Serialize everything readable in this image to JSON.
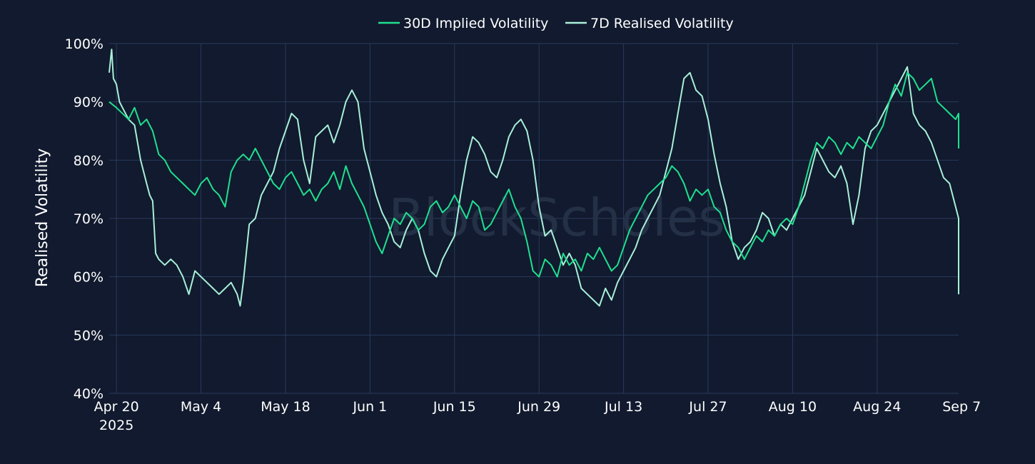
{
  "colors": {
    "background": "#111a2e",
    "grid": "#2a3a5c",
    "text": "#ffffff",
    "watermark": "#2a3446",
    "implied": "#1fe08f",
    "realised": "#a8f0d8"
  },
  "watermark": "BlockScholes",
  "chart_data": {
    "type": "line",
    "title": "",
    "xlabel": "",
    "ylabel": "Realised Volatility",
    "ylim": [
      0.4,
      1.0
    ],
    "yticks": [
      0.4,
      0.5,
      0.6,
      0.7,
      0.8,
      0.9,
      1.0
    ],
    "ytick_labels": [
      "40%",
      "50%",
      "60%",
      "70%",
      "80%",
      "90%",
      "100%"
    ],
    "x_range_days": [
      -1.2,
      139.5
    ],
    "x_start_date": "2025-04-20",
    "xticks": [
      0,
      14,
      28,
      42,
      56,
      70,
      84,
      98,
      112,
      126,
      140
    ],
    "xtick_labels": [
      "Apr 20",
      "May 4",
      "May 18",
      "Jun 1",
      "Jun 15",
      "Jun 29",
      "Jul 13",
      "Jul 27",
      "Aug 10",
      "Aug 24",
      "Sep 7"
    ],
    "xtick_year": "2025",
    "grid": true,
    "legend_position": "top-center",
    "series": [
      {
        "name": "30D Implied Volatility",
        "color_key": "implied",
        "points": [
          [
            -1.2,
            0.9
          ],
          [
            0,
            0.89
          ],
          [
            2,
            0.87
          ],
          [
            3,
            0.89
          ],
          [
            4,
            0.86
          ],
          [
            5,
            0.87
          ],
          [
            6,
            0.85
          ],
          [
            7,
            0.81
          ],
          [
            8,
            0.8
          ],
          [
            9,
            0.78
          ],
          [
            10,
            0.77
          ],
          [
            11,
            0.76
          ],
          [
            12,
            0.75
          ],
          [
            13,
            0.74
          ],
          [
            14,
            0.76
          ],
          [
            15,
            0.77
          ],
          [
            16,
            0.75
          ],
          [
            17,
            0.74
          ],
          [
            18,
            0.72
          ],
          [
            19,
            0.78
          ],
          [
            20,
            0.8
          ],
          [
            21,
            0.81
          ],
          [
            22,
            0.8
          ],
          [
            23,
            0.82
          ],
          [
            24,
            0.8
          ],
          [
            25,
            0.78
          ],
          [
            26,
            0.76
          ],
          [
            27,
            0.75
          ],
          [
            28,
            0.77
          ],
          [
            29,
            0.78
          ],
          [
            30,
            0.76
          ],
          [
            31,
            0.74
          ],
          [
            32,
            0.75
          ],
          [
            33,
            0.73
          ],
          [
            34,
            0.75
          ],
          [
            35,
            0.76
          ],
          [
            36,
            0.78
          ],
          [
            37,
            0.75
          ],
          [
            38,
            0.79
          ],
          [
            39,
            0.76
          ],
          [
            40,
            0.74
          ],
          [
            41,
            0.72
          ],
          [
            42,
            0.69
          ],
          [
            43,
            0.66
          ],
          [
            44,
            0.64
          ],
          [
            45,
            0.67
          ],
          [
            46,
            0.7
          ],
          [
            47,
            0.69
          ],
          [
            48,
            0.71
          ],
          [
            49,
            0.7
          ],
          [
            50,
            0.68
          ],
          [
            51,
            0.69
          ],
          [
            52,
            0.72
          ],
          [
            53,
            0.73
          ],
          [
            54,
            0.71
          ],
          [
            55,
            0.72
          ],
          [
            56,
            0.74
          ],
          [
            57,
            0.72
          ],
          [
            58,
            0.7
          ],
          [
            59,
            0.73
          ],
          [
            60,
            0.72
          ],
          [
            61,
            0.68
          ],
          [
            62,
            0.69
          ],
          [
            63,
            0.71
          ],
          [
            64,
            0.73
          ],
          [
            65,
            0.75
          ],
          [
            66,
            0.72
          ],
          [
            67,
            0.7
          ],
          [
            68,
            0.66
          ],
          [
            69,
            0.61
          ],
          [
            70,
            0.6
          ],
          [
            71,
            0.63
          ],
          [
            72,
            0.62
          ],
          [
            73,
            0.6
          ],
          [
            74,
            0.64
          ],
          [
            75,
            0.62
          ],
          [
            76,
            0.63
          ],
          [
            77,
            0.61
          ],
          [
            78,
            0.64
          ],
          [
            79,
            0.63
          ],
          [
            80,
            0.65
          ],
          [
            81,
            0.63
          ],
          [
            82,
            0.61
          ],
          [
            83,
            0.62
          ],
          [
            84,
            0.65
          ],
          [
            85,
            0.68
          ],
          [
            86,
            0.7
          ],
          [
            87,
            0.72
          ],
          [
            88,
            0.74
          ],
          [
            89,
            0.75
          ],
          [
            90,
            0.76
          ],
          [
            91,
            0.77
          ],
          [
            92,
            0.79
          ],
          [
            93,
            0.78
          ],
          [
            94,
            0.76
          ],
          [
            95,
            0.73
          ],
          [
            96,
            0.75
          ],
          [
            97,
            0.74
          ],
          [
            98,
            0.75
          ],
          [
            99,
            0.72
          ],
          [
            100,
            0.71
          ],
          [
            101,
            0.68
          ],
          [
            102,
            0.66
          ],
          [
            103,
            0.65
          ],
          [
            104,
            0.63
          ],
          [
            105,
            0.65
          ],
          [
            106,
            0.67
          ],
          [
            107,
            0.66
          ],
          [
            108,
            0.68
          ],
          [
            109,
            0.67
          ],
          [
            110,
            0.69
          ],
          [
            111,
            0.7
          ],
          [
            112,
            0.69
          ],
          [
            113,
            0.72
          ],
          [
            114,
            0.76
          ],
          [
            115,
            0.8
          ],
          [
            116,
            0.83
          ],
          [
            117,
            0.82
          ],
          [
            118,
            0.84
          ],
          [
            119,
            0.83
          ],
          [
            120,
            0.81
          ],
          [
            121,
            0.83
          ],
          [
            122,
            0.82
          ],
          [
            123,
            0.84
          ],
          [
            124,
            0.83
          ],
          [
            125,
            0.82
          ],
          [
            126,
            0.84
          ],
          [
            127,
            0.86
          ],
          [
            128,
            0.9
          ],
          [
            129,
            0.93
          ],
          [
            130,
            0.91
          ],
          [
            131,
            0.95
          ],
          [
            132,
            0.94
          ],
          [
            133,
            0.92
          ],
          [
            134,
            0.93
          ],
          [
            135,
            0.94
          ],
          [
            136,
            0.9
          ],
          [
            137,
            0.89
          ],
          [
            138,
            0.88
          ],
          [
            139,
            0.87
          ],
          [
            140,
            0.88
          ],
          [
            141,
            0.86
          ],
          [
            142,
            0.87
          ],
          [
            143,
            0.85
          ],
          [
            144,
            0.86
          ],
          [
            145,
            0.82
          ]
        ]
      },
      {
        "name": "7D Realised Volatility",
        "color_key": "realised",
        "points": [
          [
            -1.2,
            0.95
          ],
          [
            -0.8,
            0.99
          ],
          [
            -0.5,
            0.94
          ],
          [
            0,
            0.93
          ],
          [
            0.5,
            0.9
          ],
          [
            1,
            0.89
          ],
          [
            2,
            0.87
          ],
          [
            3,
            0.86
          ],
          [
            4,
            0.8
          ],
          [
            5,
            0.76
          ],
          [
            5.5,
            0.74
          ],
          [
            6,
            0.73
          ],
          [
            6.5,
            0.64
          ],
          [
            7,
            0.63
          ],
          [
            8,
            0.62
          ],
          [
            9,
            0.63
          ],
          [
            10,
            0.62
          ],
          [
            11,
            0.6
          ],
          [
            12,
            0.57
          ],
          [
            13,
            0.61
          ],
          [
            14,
            0.6
          ],
          [
            15,
            0.59
          ],
          [
            16,
            0.58
          ],
          [
            17,
            0.57
          ],
          [
            18,
            0.58
          ],
          [
            19,
            0.59
          ],
          [
            20,
            0.57
          ],
          [
            20.5,
            0.55
          ],
          [
            21,
            0.59
          ],
          [
            22,
            0.69
          ],
          [
            23,
            0.7
          ],
          [
            24,
            0.74
          ],
          [
            25,
            0.76
          ],
          [
            26,
            0.78
          ],
          [
            27,
            0.82
          ],
          [
            28,
            0.85
          ],
          [
            29,
            0.88
          ],
          [
            30,
            0.87
          ],
          [
            31,
            0.8
          ],
          [
            32,
            0.76
          ],
          [
            33,
            0.84
          ],
          [
            34,
            0.85
          ],
          [
            35,
            0.86
          ],
          [
            36,
            0.83
          ],
          [
            37,
            0.86
          ],
          [
            38,
            0.9
          ],
          [
            39,
            0.92
          ],
          [
            40,
            0.9
          ],
          [
            41,
            0.82
          ],
          [
            42,
            0.78
          ],
          [
            43,
            0.74
          ],
          [
            44,
            0.71
          ],
          [
            45,
            0.69
          ],
          [
            46,
            0.66
          ],
          [
            47,
            0.65
          ],
          [
            48,
            0.68
          ],
          [
            49,
            0.7
          ],
          [
            50,
            0.68
          ],
          [
            51,
            0.64
          ],
          [
            52,
            0.61
          ],
          [
            53,
            0.6
          ],
          [
            54,
            0.63
          ],
          [
            55,
            0.65
          ],
          [
            56,
            0.67
          ],
          [
            57,
            0.74
          ],
          [
            58,
            0.8
          ],
          [
            59,
            0.84
          ],
          [
            60,
            0.83
          ],
          [
            61,
            0.81
          ],
          [
            62,
            0.78
          ],
          [
            63,
            0.77
          ],
          [
            64,
            0.8
          ],
          [
            65,
            0.84
          ],
          [
            66,
            0.86
          ],
          [
            67,
            0.87
          ],
          [
            68,
            0.85
          ],
          [
            69,
            0.8
          ],
          [
            70,
            0.72
          ],
          [
            71,
            0.67
          ],
          [
            72,
            0.68
          ],
          [
            73,
            0.65
          ],
          [
            74,
            0.62
          ],
          [
            75,
            0.64
          ],
          [
            76,
            0.62
          ],
          [
            77,
            0.58
          ],
          [
            78,
            0.57
          ],
          [
            79,
            0.56
          ],
          [
            80,
            0.55
          ],
          [
            81,
            0.58
          ],
          [
            82,
            0.56
          ],
          [
            83,
            0.59
          ],
          [
            84,
            0.61
          ],
          [
            85,
            0.63
          ],
          [
            86,
            0.65
          ],
          [
            87,
            0.68
          ],
          [
            88,
            0.7
          ],
          [
            89,
            0.72
          ],
          [
            90,
            0.74
          ],
          [
            91,
            0.78
          ],
          [
            92,
            0.82
          ],
          [
            93,
            0.88
          ],
          [
            94,
            0.94
          ],
          [
            95,
            0.95
          ],
          [
            96,
            0.92
          ],
          [
            97,
            0.91
          ],
          [
            98,
            0.87
          ],
          [
            99,
            0.81
          ],
          [
            100,
            0.76
          ],
          [
            101,
            0.72
          ],
          [
            102,
            0.66
          ],
          [
            103,
            0.63
          ],
          [
            104,
            0.65
          ],
          [
            105,
            0.66
          ],
          [
            106,
            0.68
          ],
          [
            107,
            0.71
          ],
          [
            108,
            0.7
          ],
          [
            109,
            0.67
          ],
          [
            110,
            0.69
          ],
          [
            111,
            0.68
          ],
          [
            112,
            0.7
          ],
          [
            113,
            0.72
          ],
          [
            114,
            0.74
          ],
          [
            115,
            0.78
          ],
          [
            116,
            0.82
          ],
          [
            117,
            0.8
          ],
          [
            118,
            0.78
          ],
          [
            119,
            0.77
          ],
          [
            120,
            0.79
          ],
          [
            121,
            0.76
          ],
          [
            122,
            0.69
          ],
          [
            123,
            0.74
          ],
          [
            124,
            0.82
          ],
          [
            125,
            0.85
          ],
          [
            126,
            0.86
          ],
          [
            127,
            0.88
          ],
          [
            128,
            0.9
          ],
          [
            129,
            0.92
          ],
          [
            130,
            0.94
          ],
          [
            131,
            0.96
          ],
          [
            132,
            0.88
          ],
          [
            133,
            0.86
          ],
          [
            134,
            0.85
          ],
          [
            135,
            0.83
          ],
          [
            136,
            0.8
          ],
          [
            137,
            0.77
          ],
          [
            138,
            0.76
          ],
          [
            139,
            0.72
          ],
          [
            140,
            0.7
          ],
          [
            141,
            0.68
          ],
          [
            142,
            0.67
          ],
          [
            143,
            0.66
          ],
          [
            144,
            0.64
          ],
          [
            144.5,
            0.6
          ],
          [
            145,
            0.57
          ]
        ]
      }
    ]
  }
}
